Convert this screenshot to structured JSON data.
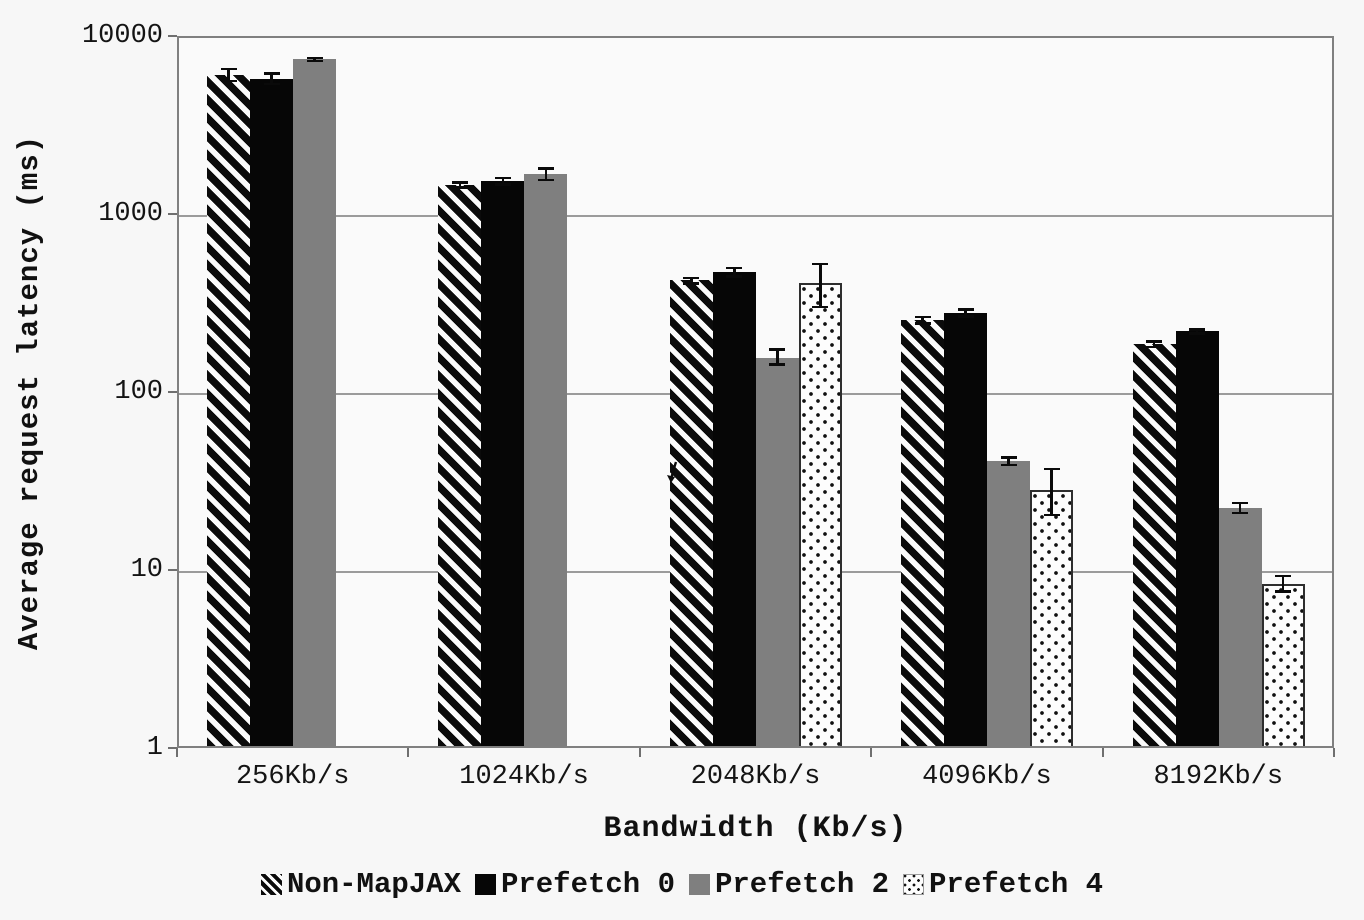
{
  "chart_data": {
    "type": "bar",
    "title": "",
    "xlabel": "Bandwidth (Kb/s)",
    "ylabel": "Average request latency (ms)",
    "yscale": "log",
    "ylim": [
      1,
      10000
    ],
    "yticks": [
      1,
      10,
      100,
      1000,
      10000
    ],
    "ytick_labels": [
      "1",
      "10",
      "100",
      "1000",
      "10000"
    ],
    "grid": "horizontal-decade-lines",
    "legend_position": "bottom",
    "categories": [
      "256Kb/s",
      "1024Kb/s",
      "2048Kb/s",
      "4096Kb/s",
      "8192Kb/s"
    ],
    "series": [
      {
        "name": "Non-MapJAX",
        "pattern": "hatch",
        "values": [
          6200,
          1500,
          435,
          260,
          190
        ],
        "err_plus": [
          500,
          50,
          15,
          12,
          8
        ],
        "err_minus": [
          450,
          50,
          15,
          10,
          6
        ]
      },
      {
        "name": "Prefetch 0",
        "pattern": "solid-black",
        "values": [
          5900,
          1570,
          483,
          285,
          225
        ],
        "err_plus": [
          430,
          70,
          30,
          14,
          6
        ],
        "err_minus": [
          380,
          60,
          25,
          12,
          5
        ]
      },
      {
        "name": "Prefetch 2",
        "pattern": "solid-gray",
        "values": [
          7600,
          1720,
          160,
          42,
          23
        ],
        "err_plus": [
          150,
          130,
          18,
          2,
          1.5
        ],
        "err_minus": [
          130,
          120,
          13,
          2,
          1.5
        ]
      },
      {
        "name": "Prefetch 4",
        "pattern": "dotted",
        "values": [
          1.0,
          1.0,
          420,
          29,
          8.6
        ],
        "err_plus": [
          0.03,
          0.03,
          120,
          9,
          0.9
        ],
        "err_minus": [
          0,
          0,
          110,
          8,
          0.8
        ]
      }
    ]
  },
  "colors": {
    "background": "#f7f7f7",
    "plot_frame": "#808080",
    "gridline": "#9b9b9b",
    "bar_black": "#060606",
    "bar_gray": "#7f7f7f",
    "text": "#111111"
  }
}
